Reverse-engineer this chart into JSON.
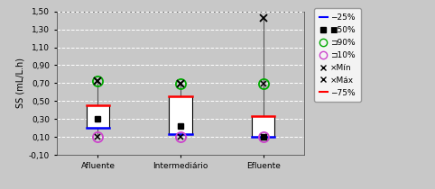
{
  "categories": [
    "Afluente",
    "Intermediário",
    "Efluente"
  ],
  "ylabel": "SS (mL/L.h)",
  "ylim": [
    -0.1,
    1.5
  ],
  "yticks": [
    -0.1,
    0.1,
    0.3,
    0.5,
    0.7,
    0.9,
    1.1,
    1.3,
    1.5
  ],
  "ytick_labels": [
    "-0,10",
    "0,10",
    "0,30",
    "0,50",
    "0,70",
    "0,90",
    "1,10",
    "1,30",
    "1,50"
  ],
  "background_color": "#c8c8c8",
  "plot_bg_color": "#c8c8c8",
  "boxes": [
    {
      "x": 1,
      "q1": 0.2,
      "median": 0.305,
      "q3": 0.455,
      "p10": 0.105,
      "p90": 0.72,
      "pmin": 0.105,
      "pmax": 0.72
    },
    {
      "x": 2,
      "q1": 0.13,
      "median": 0.22,
      "q3": 0.555,
      "p10": 0.105,
      "p90": 0.695,
      "pmin": 0.105,
      "pmax": 0.695
    },
    {
      "x": 3,
      "q1": 0.105,
      "median": 0.105,
      "q3": 0.335,
      "p10": 0.105,
      "p90": 0.695,
      "pmin": 0.105,
      "pmax": 1.43
    }
  ],
  "box_width": 0.28,
  "box_facecolor": "#ffffff",
  "box_edgecolor": "#000000",
  "whisker_color": "#555555",
  "line25_color": "#0000ff",
  "line75_color": "#ff0000",
  "median_color": "#000000",
  "p90_circle_color": "#00aa00",
  "p10_circle_color": "#cc44cc",
  "cross_color": "#000000",
  "grid_color": "#ffffff",
  "grid_style": "--",
  "legend_labels": [
    "-25%",
    "≐50%",
    "⊐90%",
    "⊐10%",
    "×Mín",
    "×Máx",
    "-75%"
  ],
  "legend_colors": [
    "#0000ff",
    "#000000",
    "#00aa00",
    "#cc44cc",
    "#000000",
    "#000000",
    "#ff0000"
  ]
}
